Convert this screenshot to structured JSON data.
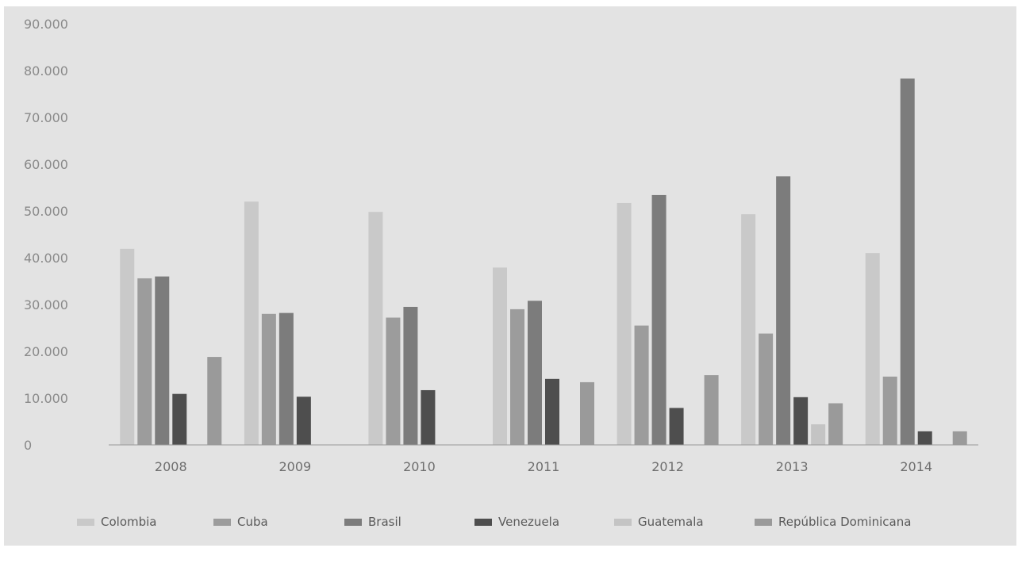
{
  "chart_data": {
    "type": "bar",
    "title": "",
    "xlabel": "",
    "ylabel": "",
    "ylim": [
      0,
      90000
    ],
    "y_ticks": [
      0,
      10000,
      20000,
      30000,
      40000,
      50000,
      60000,
      70000,
      80000,
      90000
    ],
    "y_tick_labels": [
      "0",
      "10.000",
      "20.000",
      "30.000",
      "40.000",
      "50.000",
      "60.000",
      "70.000",
      "80.000",
      "90.000"
    ],
    "grid": false,
    "legend_position": "bottom",
    "categories": [
      "2008",
      "2009",
      "2010",
      "2011",
      "2012",
      "2013",
      "2014"
    ],
    "series": [
      {
        "name": "Colombia",
        "color": "#c9c9c9",
        "values": [
          41900,
          52000,
          49800,
          37900,
          51700,
          49300,
          41000
        ]
      },
      {
        "name": "Cuba",
        "color": "#9c9c9c",
        "values": [
          35600,
          28000,
          27200,
          29000,
          25500,
          23800,
          14600
        ]
      },
      {
        "name": "Brasil",
        "color": "#7c7c7c",
        "values": [
          36000,
          28200,
          29500,
          30800,
          53400,
          57400,
          78300
        ]
      },
      {
        "name": "Venezuela",
        "color": "#4e4e4e",
        "values": [
          10900,
          10300,
          11700,
          14100,
          7900,
          10200,
          2900
        ]
      },
      {
        "name": "Guatemala",
        "color": "#c4c4c4",
        "values": [
          0,
          0,
          0,
          0,
          0,
          4400,
          0
        ]
      },
      {
        "name": "República Dominicana",
        "color": "#9a9a9a",
        "values": [
          18800,
          0,
          0,
          13400,
          14900,
          8900,
          2900
        ]
      }
    ]
  }
}
